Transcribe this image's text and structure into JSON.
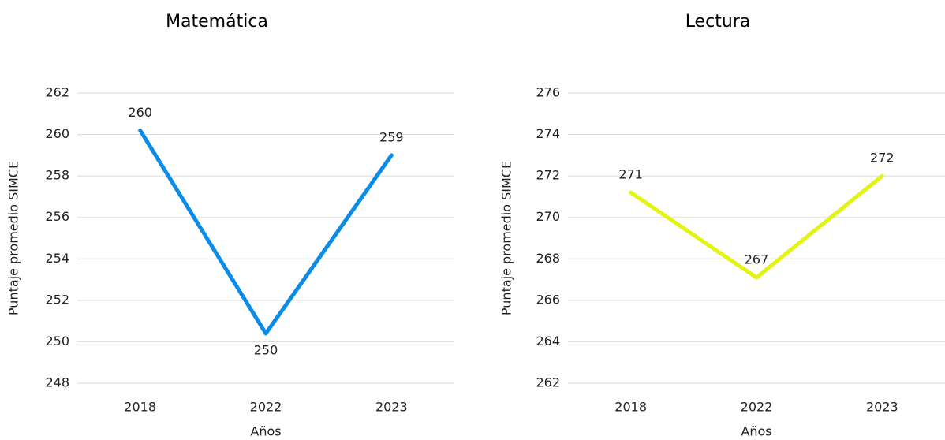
{
  "chart_data": [
    {
      "type": "line",
      "title": "Matemática",
      "x_label": "Años",
      "y_label": "Puntaje promedio SIMCE",
      "categories": [
        "2018",
        "2022",
        "2023"
      ],
      "series": [
        {
          "name": "Matemática",
          "color": "#0b8ce9",
          "values": [
            260.2,
            250.4,
            259
          ],
          "value_labels": [
            "260",
            "250",
            "259"
          ]
        }
      ],
      "ylim": [
        248,
        262
      ],
      "yticks": [
        248,
        250,
        252,
        254,
        256,
        258,
        260,
        262
      ],
      "grid": true
    },
    {
      "type": "line",
      "title": "Lectura",
      "x_label": "Años",
      "y_label": "Puntaje promedio SIMCE",
      "categories": [
        "2018",
        "2022",
        "2023"
      ],
      "series": [
        {
          "name": "Lectura",
          "color": "#e2f512",
          "values": [
            271.2,
            267.1,
            272
          ],
          "value_labels": [
            "271",
            "267",
            "272"
          ]
        }
      ],
      "ylim": [
        262,
        276
      ],
      "yticks": [
        262,
        264,
        266,
        268,
        270,
        272,
        274,
        276
      ],
      "grid": true
    }
  ]
}
